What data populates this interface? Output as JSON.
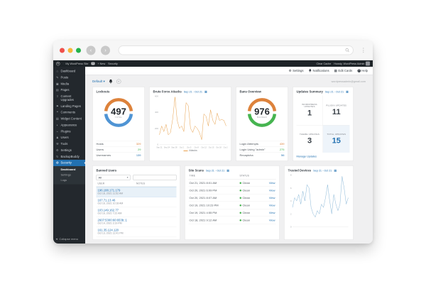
{
  "browser": {
    "traffic_lights": {
      "close": "#f0504a",
      "minimize": "#f6b73c",
      "maximize": "#23b34a"
    },
    "back_glyph": "‹",
    "forward_glyph": "›",
    "url_value": ""
  },
  "admin_bar": {
    "site_name": "My WordPress Site",
    "comments_count": "0",
    "new_label": "+ New",
    "security_label": "Security",
    "clear_cache_label": "Clear Cache",
    "howdy_label": "Howdy, WordPress Admin"
  },
  "sidebar": {
    "items": [
      {
        "icon": "dashboard-icon",
        "glyph": "⌂",
        "label": "Dashboard"
      },
      {
        "icon": "posts-icon",
        "glyph": "✎",
        "label": "Posts"
      },
      {
        "icon": "media-icon",
        "glyph": "▣",
        "label": "Media"
      },
      {
        "icon": "pages-icon",
        "glyph": "▤",
        "label": "Pages"
      },
      {
        "icon": "content-upgrades-icon",
        "glyph": "⇧",
        "label": "Content Upgrades"
      },
      {
        "icon": "landing-pages-icon",
        "glyph": "⚑",
        "label": "Landing Pages"
      },
      {
        "icon": "comments-icon",
        "glyph": "❝",
        "label": "Comments"
      },
      {
        "icon": "widget-content-icon",
        "glyph": "▥",
        "label": "Widget Content"
      },
      {
        "icon": "appearance-icon",
        "glyph": "◐",
        "label": "Appearance"
      },
      {
        "icon": "plugins-icon",
        "glyph": "⌁",
        "label": "Plugins"
      },
      {
        "icon": "users-icon",
        "glyph": "♟",
        "label": "Users"
      },
      {
        "icon": "tools-icon",
        "glyph": "⚒",
        "label": "Tools"
      },
      {
        "icon": "settings-icon",
        "glyph": "⚙",
        "label": "Settings"
      },
      {
        "icon": "backupbuddy-icon",
        "glyph": "↻",
        "label": "BackupBuddy"
      },
      {
        "icon": "security-icon",
        "glyph": "✪",
        "label": "Security",
        "active": true
      }
    ],
    "submenu": {
      "items": [
        "Dashboard",
        "Settings",
        "Logs"
      ],
      "current_index": 0
    },
    "collapse_label": "Collapse menu",
    "collapse_glyph": "◀"
  },
  "topbar": {
    "settings_label": "Settings",
    "notifications_label": "Notifications",
    "edit_cards_label": "Edit Cards",
    "help_label": "Help"
  },
  "content": {
    "board_select_label": "Default",
    "email": "wordpressadmin@gmail.com"
  },
  "cards": {
    "lockouts": {
      "title": "Lockouts",
      "total": "497",
      "total_label": "TOTAL",
      "ring_top_color": "#dd823b",
      "ring_bottom_color": "#4f94d4",
      "stats": [
        {
          "label": "Hosts",
          "value": "329",
          "color": "#dd823b"
        },
        {
          "label": "Users",
          "value": "29",
          "color": "#46b450"
        },
        {
          "label": "Usernames",
          "value": "139",
          "color": "#2271b1"
        }
      ]
    },
    "brute_force": {
      "title": "Brute Force Attacks",
      "date_range": "Sep 21 - Oct 21",
      "legend_label": "Attacks"
    },
    "bans": {
      "title": "Bans Overview",
      "total": "976",
      "total_label": "BANNED",
      "ring_top_color": "#dd823b",
      "ring_bottom_color": "#46b450",
      "stats": [
        {
          "label": "Login Attempts",
          "value": "439",
          "color": "#dd823b"
        },
        {
          "label": "Login Using \"admin\"",
          "value": "275",
          "color": "#46b450"
        },
        {
          "label": "Recaptcha",
          "value": "56",
          "color": "#2271b1"
        }
      ]
    },
    "updates": {
      "title": "Updates Summary",
      "date_range": "Sep 21 - Oct 21",
      "cells": [
        {
          "label": "WORDPRESS UPDATES",
          "value": "1"
        },
        {
          "label": "PLUGIN UPDATES",
          "value": "11"
        },
        {
          "label": "THEME UPDATES",
          "value": "3"
        },
        {
          "label": "TOTAL UPDATES",
          "value": "15"
        }
      ],
      "link_label": "Manage Updates"
    },
    "banned_users": {
      "title": "Banned Users",
      "filter_value": "All",
      "search_placeholder": "",
      "col_user": "USER",
      "col_notes": "NOTES",
      "rows": [
        {
          "ip": "196.188.171.179",
          "date": "Oct 18, 2021 11:52 AM",
          "notes": "",
          "selected": true
        },
        {
          "ip": "167.71.13.46",
          "date": "Oct 16, 2021 10:18 AM",
          "notes": ""
        },
        {
          "ip": "103.149.162.77",
          "date": "Oct 16, 2021 7:22 AM",
          "notes": ""
        },
        {
          "ip": "2607:5300:60:653b::1",
          "date": "Oct 14, 2021 3:19 PM",
          "notes": ""
        },
        {
          "ip": "161.35.124.120",
          "date": "Oct 13, 2021 12:41 PM",
          "notes": ""
        }
      ]
    },
    "site_scans": {
      "title": "Site Scans",
      "date_range": "Sep 21 - Oct 21",
      "col_time": "TIME",
      "col_status": "STATUS",
      "rows": [
        {
          "time": "Oct 21, 2021 8:01 AM",
          "status": "Clean",
          "view": "View"
        },
        {
          "time": "Oct 20, 2021 6:09 PM",
          "status": "Clean",
          "view": "View"
        },
        {
          "time": "Oct 20, 2021 8:07 AM",
          "status": "Clean",
          "view": "View"
        },
        {
          "time": "Oct 19, 2021 10:23 PM",
          "status": "Clean",
          "view": "View"
        },
        {
          "time": "Oct 19, 2021 4:55 PM",
          "status": "Clean",
          "view": "View"
        },
        {
          "time": "Oct 18, 2021 9:12 AM",
          "status": "Clean",
          "view": "View"
        }
      ]
    },
    "trusted_devices": {
      "title": "Trusted Devices",
      "date_range": "Sep 21 - Oct 21"
    }
  },
  "chart_data": [
    {
      "type": "line",
      "title": "Brute Force Attacks",
      "series": [
        {
          "name": "Attacks",
          "values": [
            120,
            230,
            160,
            250,
            120,
            150,
            320,
            590,
            300,
            200,
            230,
            160,
            520,
            480,
            200,
            150,
            230,
            200,
            150,
            60,
            380,
            350,
            230,
            430,
            300,
            250,
            390,
            300,
            310,
            300,
            230
          ]
        }
      ],
      "x_range": "daily Sep 21 - Oct 21, 2021",
      "xticks": [
        "Sep 21",
        "Sep 24",
        "Sep 28",
        "Oct 2",
        "Oct 5",
        "Oct 8",
        "Oct 12",
        "Oct 15",
        "Oct 18",
        "Oct 21"
      ],
      "ylim": [
        0,
        600
      ],
      "yticks": [
        0,
        200,
        400,
        600
      ],
      "color": "#e8a04b",
      "legend_position": "bottom",
      "grid": false
    },
    {
      "type": "line",
      "title": "Trusted Devices",
      "series": [
        {
          "name": "Devices",
          "values": [
            3,
            4.5,
            4,
            5,
            3.5,
            5.5,
            4,
            6.5,
            6,
            3,
            2,
            1.5,
            2.5,
            2,
            3.5,
            3,
            4.5,
            6.5,
            4,
            2,
            5,
            3.5,
            2.5,
            3.5,
            7.8,
            6,
            3.5,
            4.5
          ]
        }
      ],
      "x_range": "daily Sep 21 - Oct 21, 2021",
      "xticks": [],
      "ylim": [
        0,
        8
      ],
      "yticks": [
        0,
        2,
        4,
        6,
        8
      ],
      "color": "#8ab8d8",
      "legend_position": "none",
      "grid": false
    }
  ]
}
